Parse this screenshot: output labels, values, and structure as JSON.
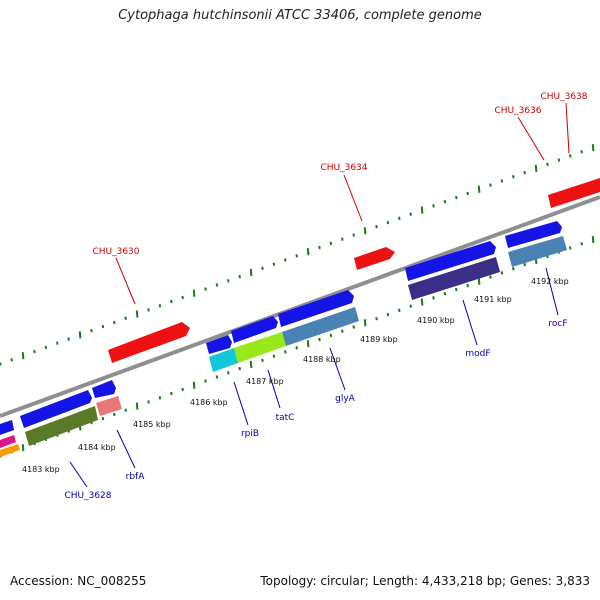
{
  "title": "Cytophaga hutchinsonii ATCC 33406, complete genome",
  "footer": {
    "accession": "Accession: NC_008255",
    "summary": "Topology: circular; Length: 4,433,218 bp; Genes: 3,833"
  },
  "colors": {
    "backbone": "#8f8f8f",
    "tick": "#1a7a1a",
    "blue_gene": "#1414e6",
    "red_gene": "#ee1111",
    "red_label": "#cc0000",
    "blue_label": "#0000aa"
  },
  "kbp_ticks": [
    "4183 kbp",
    "4184 kbp",
    "4185 kbp",
    "4186 kbp",
    "4187 kbp",
    "4188 kbp",
    "4189 kbp",
    "4190 kbp",
    "4191 kbp",
    "4192 kbp"
  ],
  "top_labels": [
    "CHU_3630",
    "CHU_3634",
    "CHU_3636",
    "CHU_3638"
  ],
  "bottom_labels": [
    "CHU_3628",
    "rbfA",
    "rpiB",
    "tatC",
    "glyA",
    "modF",
    "rocF"
  ]
}
